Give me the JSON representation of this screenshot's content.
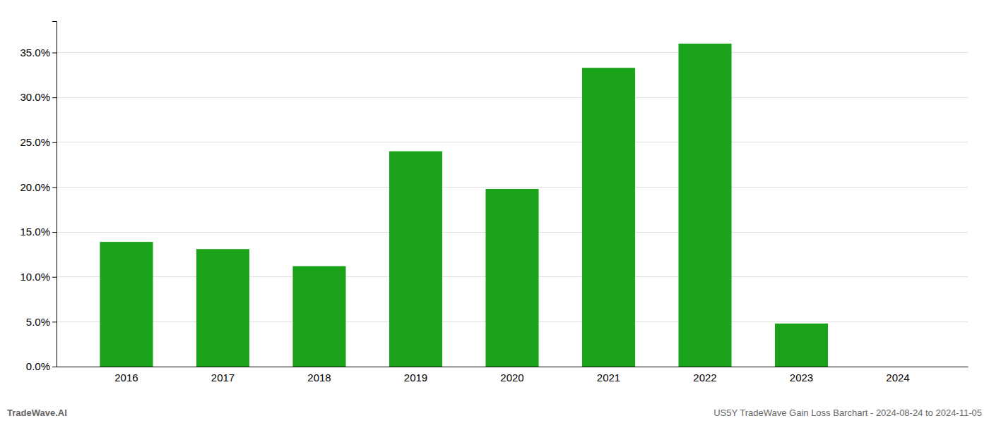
{
  "chart_data": {
    "type": "bar",
    "categories": [
      "2016",
      "2017",
      "2018",
      "2019",
      "2020",
      "2021",
      "2022",
      "2023",
      "2024"
    ],
    "values": [
      0.139,
      0.131,
      0.112,
      0.24,
      0.198,
      0.333,
      0.36,
      0.048,
      0.0
    ],
    "color": "#1aa31a",
    "ylim": [
      0,
      0.385
    ],
    "yticks": [
      {
        "value": 0.0,
        "label": "0.0%"
      },
      {
        "value": 0.05,
        "label": "5.0%"
      },
      {
        "value": 0.1,
        "label": "10.0%"
      },
      {
        "value": 0.15,
        "label": "15.0%"
      },
      {
        "value": 0.2,
        "label": "20.0%"
      },
      {
        "value": 0.25,
        "label": "25.0%"
      },
      {
        "value": 0.3,
        "label": "30.0%"
      },
      {
        "value": 0.35,
        "label": "35.0%"
      }
    ],
    "grid": true,
    "annotations": [
      "TradeWave.AI",
      "US5Y TradeWave Gain Loss Barchart - 2024-08-24 to 2024-11-05"
    ]
  }
}
